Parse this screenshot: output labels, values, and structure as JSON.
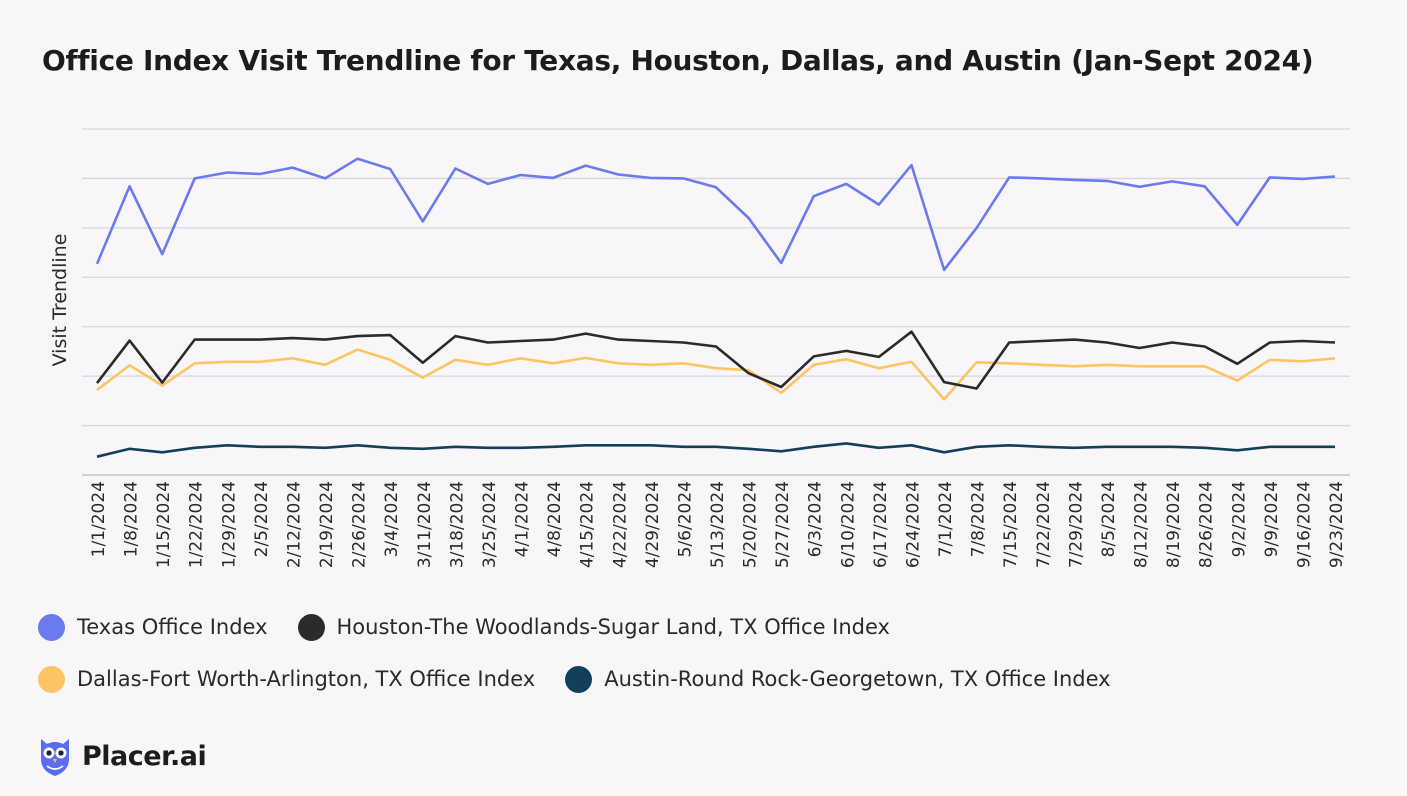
{
  "chart_data": {
    "type": "line",
    "title": "Office Index Visit Trendline for Texas, Houston, Dallas, and Austin (Jan-Sept 2024)",
    "xlabel": "",
    "ylabel": "Visit Trendline",
    "ylim": [
      0,
      7
    ],
    "grid": true,
    "legend_position": "bottom",
    "categories": [
      "1/1/2024",
      "1/8/2024",
      "1/15/2024",
      "1/22/2024",
      "1/29/2024",
      "2/5/2024",
      "2/12/2024",
      "2/19/2024",
      "2/26/2024",
      "3/4/2024",
      "3/11/2024",
      "3/18/2024",
      "3/25/2024",
      "4/1/2024",
      "4/8/2024",
      "4/15/2024",
      "4/22/2024",
      "4/29/2024",
      "5/6/2024",
      "5/13/2024",
      "5/20/2024",
      "5/27/2024",
      "6/3/2024",
      "6/10/2024",
      "6/17/2024",
      "6/24/2024",
      "7/1/2024",
      "7/8/2024",
      "7/15/2024",
      "7/22/2024",
      "7/29/2024",
      "8/5/2024",
      "8/12/2024",
      "8/19/2024",
      "8/26/2024",
      "9/2/2024",
      "9/9/2024",
      "9/16/2024",
      "9/23/2024"
    ],
    "series": [
      {
        "name": "Texas Office Index",
        "color": "#6b7bef",
        "values": [
          4.27,
          5.84,
          4.47,
          6.0,
          6.12,
          6.09,
          6.22,
          6.0,
          6.4,
          6.19,
          5.13,
          6.2,
          5.89,
          6.07,
          6.01,
          6.26,
          6.08,
          6.01,
          6.0,
          5.82,
          5.2,
          4.29,
          5.64,
          5.89,
          5.47,
          6.27,
          4.15,
          5.0,
          6.02,
          6.0,
          5.97,
          5.95,
          5.83,
          5.94,
          5.84,
          5.06,
          6.02,
          5.99,
          6.04
        ]
      },
      {
        "name": "Houston-The Woodlands-Sugar Land, TX Office Index",
        "color": "#2b2b2b",
        "values": [
          1.86,
          2.72,
          1.87,
          2.74,
          2.74,
          2.74,
          2.77,
          2.74,
          2.81,
          2.83,
          2.27,
          2.81,
          2.68,
          2.71,
          2.74,
          2.86,
          2.74,
          2.71,
          2.68,
          2.6,
          2.06,
          1.78,
          2.4,
          2.51,
          2.39,
          2.9,
          1.88,
          1.75,
          2.68,
          2.71,
          2.74,
          2.68,
          2.57,
          2.68,
          2.6,
          2.25,
          2.68,
          2.71,
          2.68
        ]
      },
      {
        "name": "Dallas-Fort Worth-Arlington, TX Office Index",
        "color": "#fdc463",
        "values": [
          1.72,
          2.22,
          1.81,
          2.26,
          2.29,
          2.29,
          2.36,
          2.23,
          2.54,
          2.33,
          1.97,
          2.33,
          2.23,
          2.36,
          2.26,
          2.37,
          2.26,
          2.23,
          2.26,
          2.16,
          2.12,
          1.66,
          2.23,
          2.34,
          2.16,
          2.29,
          1.53,
          2.28,
          2.26,
          2.23,
          2.2,
          2.23,
          2.2,
          2.2,
          2.2,
          1.91,
          2.33,
          2.3,
          2.36
        ]
      },
      {
        "name": "Austin-Round Rock-Georgetown, TX Office Index",
        "color": "#123f5a",
        "values": [
          0.37,
          0.53,
          0.46,
          0.55,
          0.6,
          0.57,
          0.57,
          0.55,
          0.6,
          0.55,
          0.53,
          0.57,
          0.55,
          0.55,
          0.57,
          0.6,
          0.6,
          0.6,
          0.57,
          0.57,
          0.53,
          0.48,
          0.57,
          0.64,
          0.55,
          0.6,
          0.46,
          0.57,
          0.6,
          0.57,
          0.55,
          0.57,
          0.57,
          0.57,
          0.55,
          0.5,
          0.57,
          0.57,
          0.57
        ]
      }
    ]
  },
  "brand": {
    "name": "Placer.ai",
    "logo_icon": "owl-icon",
    "logo_color": "#5b6cf0"
  }
}
